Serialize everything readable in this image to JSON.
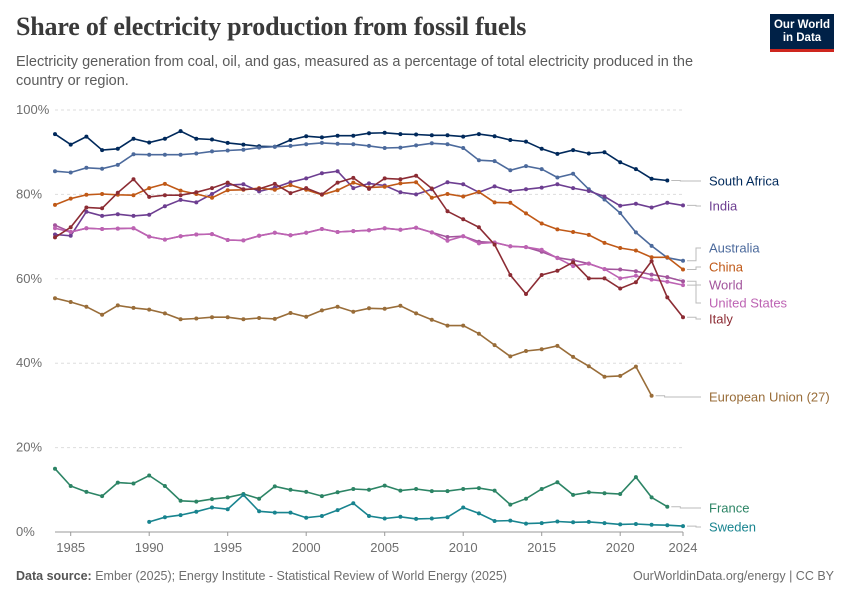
{
  "header": {
    "title": "Share of electricity production from fossil fuels",
    "subtitle": "Electricity generation from coal, oil, and gas, measured as a percentage of total electricity produced in the country or region.",
    "logo_line1": "Our World",
    "logo_line2": "in Data"
  },
  "footer": {
    "source_label": "Data source:",
    "source_text": "Ember (2025); Energy Institute - Statistical Review of World Energy (2025)",
    "credit": "OurWorldinData.org/energy | CC BY"
  },
  "chart_data": {
    "type": "line",
    "title": "Share of electricity production from fossil fuels",
    "xlabel": "",
    "ylabel": "",
    "xlim": [
      1984,
      2024
    ],
    "ylim": [
      0,
      100
    ],
    "x_ticks": [
      1985,
      1990,
      1995,
      2000,
      2005,
      2010,
      2015,
      2020,
      2024
    ],
    "y_ticks": [
      0,
      20,
      40,
      60,
      80,
      100
    ],
    "y_tick_labels": [
      "0%",
      "20%",
      "40%",
      "60%",
      "80%",
      "100%"
    ],
    "grid": true,
    "series": [
      {
        "name": "South Africa",
        "color": "#00295b",
        "start": 1984,
        "values": [
          94.3,
          91.8,
          93.7,
          90.5,
          90.8,
          93.2,
          92.3,
          93.2,
          95.0,
          93.2,
          93.0,
          92.2,
          91.8,
          91.4,
          91.3,
          92.9,
          93.8,
          93.5,
          93.9,
          93.9,
          94.5,
          94.6,
          94.3,
          94.2,
          94.0,
          94.0,
          93.7,
          94.3,
          93.8,
          92.9,
          92.5,
          90.8,
          89.6,
          90.5,
          89.7,
          90.0,
          87.6,
          86.0,
          83.7,
          83.3
        ]
      },
      {
        "name": "Australia",
        "color": "#4c6a9c",
        "start": 1984,
        "values": [
          85.5,
          85.2,
          86.3,
          86.1,
          87.0,
          89.5,
          89.4,
          89.4,
          89.4,
          89.7,
          90.2,
          90.4,
          90.6,
          91.1,
          91.3,
          91.5,
          91.9,
          92.2,
          92.0,
          91.9,
          91.5,
          91.0,
          91.1,
          91.6,
          92.1,
          91.9,
          91.0,
          88.1,
          87.9,
          85.7,
          86.7,
          86.0,
          84.0,
          84.9,
          81.2,
          78.8,
          75.6,
          71.0,
          67.8,
          65.0,
          64.3
        ]
      },
      {
        "name": "India",
        "color": "#6d3e91",
        "start": 1984,
        "values": [
          70.5,
          70.2,
          75.9,
          74.9,
          75.3,
          74.9,
          75.2,
          77.2,
          78.7,
          78.1,
          80.1,
          82.2,
          82.4,
          80.7,
          81.6,
          82.9,
          83.8,
          85.0,
          85.5,
          81.5,
          82.6,
          82.1,
          80.5,
          80.0,
          81.2,
          82.9,
          82.4,
          80.5,
          81.9,
          80.8,
          81.2,
          81.6,
          82.4,
          81.5,
          80.8,
          79.5,
          77.3,
          77.8,
          76.9,
          78.0,
          77.4
        ]
      },
      {
        "name": "China",
        "color": "#c05917",
        "start": 1984,
        "values": [
          77.5,
          79.0,
          79.9,
          80.1,
          79.9,
          79.8,
          81.5,
          82.5,
          80.9,
          80.1,
          79.2,
          81.0,
          81.1,
          81.5,
          81.1,
          82.2,
          81.1,
          79.9,
          81.0,
          82.8,
          81.6,
          81.8,
          82.6,
          82.9,
          79.2,
          80.1,
          79.5,
          80.6,
          78.1,
          78.0,
          75.5,
          73.1,
          71.7,
          71.1,
          70.4,
          68.5,
          67.3,
          66.7,
          65.1,
          65.1,
          62.2
        ]
      },
      {
        "name": "World",
        "color": "#a2559c",
        "start": 1984,
        "values": [
          72.7,
          71.1,
          72.0,
          71.8,
          71.9,
          72.0,
          70.0,
          69.3,
          70.1,
          70.5,
          70.6,
          69.2,
          69.1,
          70.2,
          70.9,
          70.3,
          70.9,
          71.8,
          71.1,
          71.3,
          71.5,
          72.0,
          71.6,
          72.1,
          71.0,
          69.9,
          70.1,
          68.8,
          68.6,
          67.7,
          67.5,
          66.4,
          65.0,
          64.4,
          63.6,
          62.3,
          62.2,
          61.8,
          61.0,
          60.4,
          59.4
        ]
      },
      {
        "name": "United States",
        "color": "#bd63b3",
        "start": 1984,
        "values": [
          72.0,
          71.1,
          72.0,
          71.8,
          71.9,
          72.0,
          70.0,
          69.3,
          70.1,
          70.5,
          70.6,
          69.2,
          69.1,
          70.2,
          70.9,
          70.3,
          70.9,
          71.8,
          71.1,
          71.3,
          71.5,
          72.0,
          71.6,
          72.1,
          71.0,
          69.0,
          70.1,
          68.4,
          68.6,
          67.7,
          67.5,
          66.9,
          64.9,
          63.0,
          63.6,
          62.3,
          60.1,
          60.7,
          59.8,
          59.3,
          58.5
        ]
      },
      {
        "name": "Italy",
        "color": "#8c2c34",
        "start": 1984,
        "values": [
          69.8,
          72.2,
          76.9,
          76.7,
          80.4,
          83.6,
          79.4,
          79.8,
          79.8,
          80.5,
          81.5,
          82.8,
          81.2,
          81.3,
          82.5,
          80.3,
          81.5,
          80.0,
          82.8,
          83.9,
          81.3,
          83.8,
          83.6,
          84.4,
          81.4,
          76.0,
          74.1,
          72.2,
          68.1,
          60.9,
          56.4,
          60.9,
          61.9,
          63.9,
          60.1,
          60.1,
          57.7,
          59.2,
          64.2,
          55.6,
          50.9
        ]
      },
      {
        "name": "European Union (27)",
        "color": "#996d39",
        "start": 1984,
        "values": [
          55.4,
          54.5,
          53.4,
          51.5,
          53.7,
          53.1,
          52.7,
          51.8,
          50.4,
          50.6,
          50.9,
          50.9,
          50.4,
          50.7,
          50.5,
          51.9,
          51.0,
          52.5,
          53.4,
          52.2,
          53.0,
          52.9,
          53.6,
          51.8,
          50.3,
          48.9,
          48.9,
          47.0,
          44.3,
          41.6,
          42.9,
          43.3,
          44.1,
          41.5,
          39.3,
          36.8,
          37.0,
          39.2,
          32.3
        ]
      },
      {
        "name": "France",
        "color": "#2c8465",
        "start": 1984,
        "values": [
          15.0,
          10.9,
          9.5,
          8.5,
          11.7,
          11.5,
          13.4,
          10.9,
          7.4,
          7.2,
          7.8,
          8.2,
          9.0,
          7.9,
          10.8,
          10.0,
          9.5,
          8.5,
          9.4,
          10.2,
          10.0,
          11.0,
          9.8,
          10.2,
          9.7,
          9.7,
          10.2,
          10.4,
          9.8,
          6.5,
          7.9,
          10.2,
          11.8,
          8.8,
          9.4,
          9.2,
          9.0,
          13.0,
          8.2,
          6.0
        ]
      },
      {
        "name": "Sweden",
        "color": "#18848f",
        "start": 1990,
        "values": [
          2.4,
          3.5,
          4.0,
          4.8,
          5.8,
          5.4,
          8.8,
          4.9,
          4.6,
          4.6,
          3.4,
          3.8,
          5.2,
          6.8,
          3.8,
          3.2,
          3.6,
          3.1,
          3.2,
          3.5,
          5.8,
          4.4,
          2.6,
          2.7,
          2.0,
          2.1,
          2.5,
          2.3,
          2.4,
          2.1,
          1.8,
          1.9,
          1.7,
          1.6,
          1.4
        ]
      }
    ],
    "end_labels": [
      {
        "text": "South Africa",
        "series": "South Africa"
      },
      {
        "text": "India",
        "series": "India"
      },
      {
        "text": "Australia",
        "series": "Australia"
      },
      {
        "text": "China",
        "series": "China"
      },
      {
        "text": "World",
        "series": "World"
      },
      {
        "text": "United States",
        "series": "United States"
      },
      {
        "text": "Italy",
        "series": "Italy"
      },
      {
        "text": "European Union (27)",
        "series": "European Union (27)"
      },
      {
        "text": "France",
        "series": "France"
      },
      {
        "text": "Sweden",
        "series": "Sweden"
      }
    ]
  }
}
